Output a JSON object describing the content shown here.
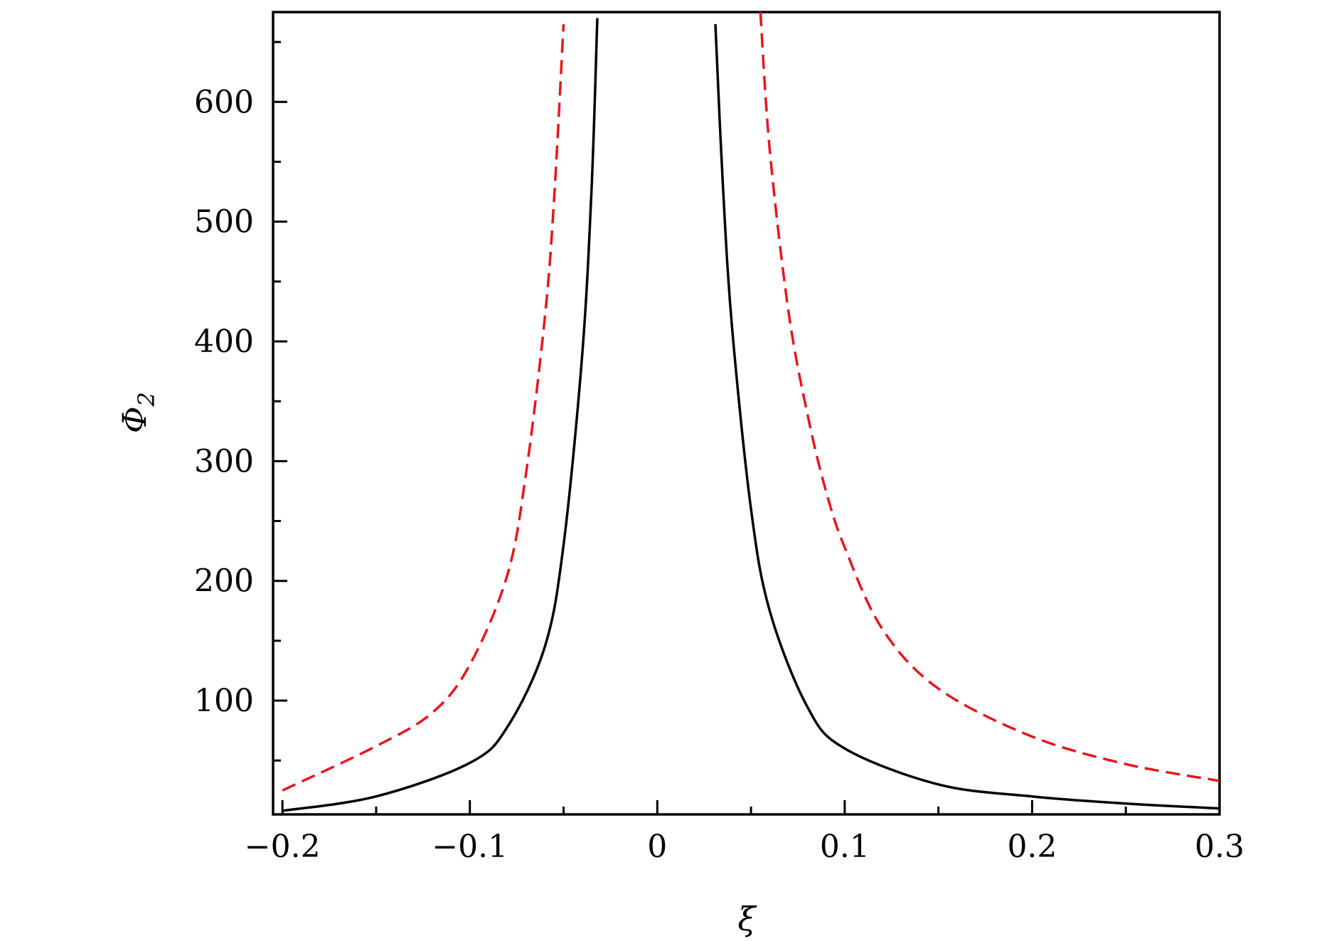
{
  "chart_data": {
    "type": "line",
    "xlabel": "ξ",
    "ylabel": "Φ",
    "ylabel_subscript": "2",
    "xlim": [
      -0.205,
      0.3
    ],
    "ylim": [
      5,
      675
    ],
    "grid": false,
    "x_ticks": [
      {
        "value": -0.2,
        "label": "−0.2"
      },
      {
        "value": -0.1,
        "label": "−0.1"
      },
      {
        "value": 0,
        "label": "0"
      },
      {
        "value": 0.1,
        "label": "0.1"
      },
      {
        "value": 0.2,
        "label": "0.2"
      },
      {
        "value": 0.3,
        "label": "0.3"
      }
    ],
    "y_ticks": [
      {
        "value": 100,
        "label": "100"
      },
      {
        "value": 200,
        "label": "200"
      },
      {
        "value": 300,
        "label": "300"
      },
      {
        "value": 400,
        "label": "400"
      },
      {
        "value": 500,
        "label": "500"
      },
      {
        "value": 600,
        "label": "600"
      }
    ],
    "series": [
      {
        "color": "#000000",
        "dash": "solid",
        "segments": [
          {
            "x": [
              -0.2,
              -0.15,
              -0.1,
              -0.08,
              -0.06,
              -0.05,
              -0.04,
              -0.035,
              -0.032
            ],
            "y": [
              8,
              20,
              48,
              78,
              145,
              230,
              390,
              530,
              670
            ]
          },
          {
            "x": [
              0.031,
              0.035,
              0.04,
              0.05,
              0.06,
              0.08,
              0.1,
              0.15,
              0.2,
              0.25,
              0.3
            ],
            "y": [
              665,
              530,
              410,
              260,
              175,
              95,
              60,
              30,
              20,
              14,
              10
            ]
          }
        ]
      },
      {
        "color": "#e8141e",
        "dash": "dashed",
        "segments": [
          {
            "x": [
              -0.2,
              -0.15,
              -0.12,
              -0.1,
              -0.08,
              -0.07,
              -0.06,
              -0.055,
              -0.05
            ],
            "y": [
              25,
              62,
              90,
              130,
              205,
              290,
              420,
              520,
              665
            ]
          },
          {
            "x": [
              0.055,
              0.06,
              0.07,
              0.08,
              0.09,
              0.1,
              0.12,
              0.15,
              0.2,
              0.25,
              0.3
            ],
            "y": [
              675,
              560,
              425,
              340,
              275,
              228,
              160,
              110,
              70,
              47,
              33
            ]
          }
        ]
      }
    ]
  }
}
